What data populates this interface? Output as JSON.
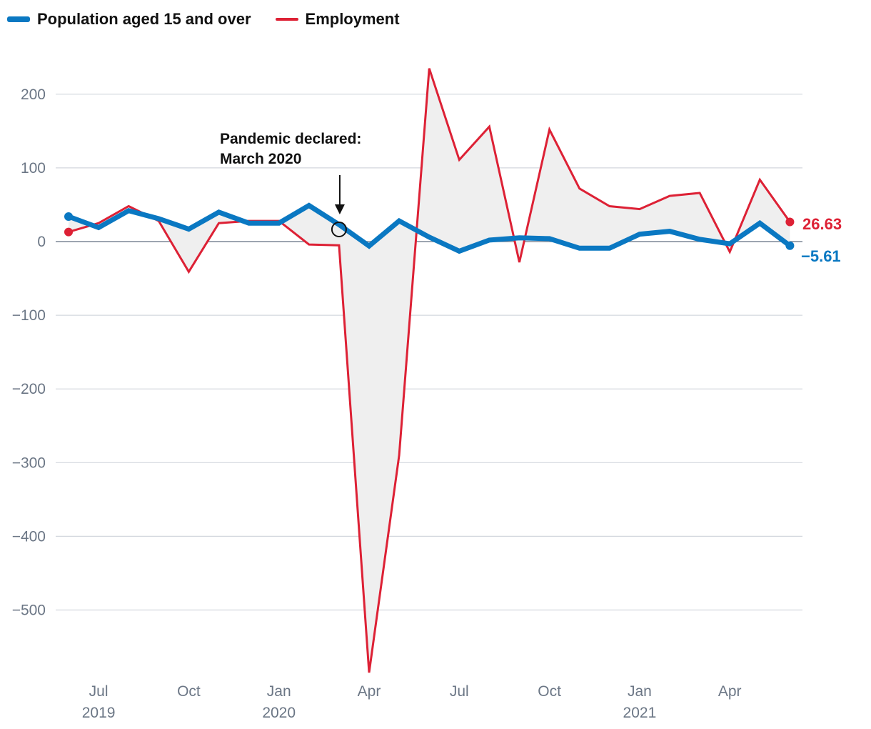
{
  "legend": [
    {
      "label": "Population aged 15 and over",
      "color": "#0a78c2"
    },
    {
      "label": "Employment",
      "color": "#dd2135"
    }
  ],
  "chart_data": {
    "type": "line",
    "title": "",
    "xlabel": "",
    "ylabel": "",
    "ylim": [
      -585,
      245
    ],
    "yticks": [
      200,
      100,
      0,
      -100,
      -200,
      -300,
      -400,
      -500
    ],
    "ytick_labels": [
      "200",
      "100",
      "0",
      "−100",
      "−200",
      "−300",
      "−400",
      "−500"
    ],
    "x": [
      "2019-06",
      "2019-07",
      "2019-08",
      "2019-09",
      "2019-10",
      "2019-11",
      "2019-12",
      "2020-01",
      "2020-02",
      "2020-03",
      "2020-04",
      "2020-05",
      "2020-06",
      "2020-07",
      "2020-08",
      "2020-09",
      "2020-10",
      "2020-11",
      "2020-12",
      "2021-01",
      "2021-02",
      "2021-03",
      "2021-04",
      "2021-05",
      "2021-06"
    ],
    "xticks": [
      {
        "index": 1,
        "label": "Jul",
        "year": "2019"
      },
      {
        "index": 4,
        "label": "Oct",
        "year": ""
      },
      {
        "index": 7,
        "label": "Jan",
        "year": "2020"
      },
      {
        "index": 10,
        "label": "Apr",
        "year": ""
      },
      {
        "index": 13,
        "label": "Jul",
        "year": ""
      },
      {
        "index": 16,
        "label": "Oct",
        "year": ""
      },
      {
        "index": 19,
        "label": "Jan",
        "year": "2021"
      },
      {
        "index": 22,
        "label": "Apr",
        "year": ""
      }
    ],
    "series": [
      {
        "name": "Population aged 15 and over",
        "color": "#0a78c2",
        "values": [
          34,
          19,
          42,
          31,
          17,
          40,
          25,
          25,
          49,
          23,
          -6,
          28,
          6,
          -13,
          2,
          5,
          4,
          -9,
          -9,
          10,
          14,
          3,
          -3,
          25,
          -5.61
        ]
      },
      {
        "name": "Employment",
        "color": "#dd2135",
        "values": [
          13,
          25,
          48,
          28,
          -41,
          25,
          28,
          28,
          -4,
          -5,
          -585,
          -290,
          235,
          111,
          156,
          -28,
          152,
          72,
          48,
          44,
          62,
          66,
          -14,
          84,
          26.63
        ]
      }
    ],
    "annotation": {
      "line1": "Pandemic declared:",
      "line2": "March 2020",
      "index": 9
    },
    "end_labels": {
      "population": "−5.61",
      "employment": "26.63"
    }
  }
}
